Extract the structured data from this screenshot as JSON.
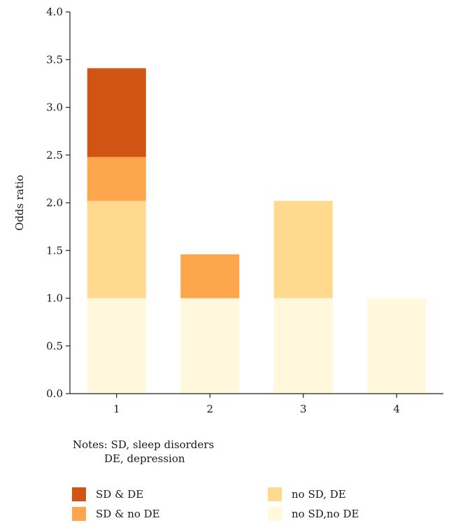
{
  "chart_data": {
    "type": "bar",
    "stacked": true,
    "categories": [
      "1",
      "2",
      "3",
      "4"
    ],
    "series": [
      {
        "name": "no SD,no DE",
        "color": "#fff8dc",
        "values": [
          1.0,
          1.0,
          1.0,
          1.0
        ]
      },
      {
        "name": "no SD, DE",
        "color": "#fed98e",
        "values": [
          1.02,
          0.0,
          1.02,
          0.0
        ]
      },
      {
        "name": "SD & no DE",
        "color": "#fea64b",
        "values": [
          0.46,
          0.46,
          0.0,
          0.0
        ]
      },
      {
        "name": "SD & DE",
        "color": "#d15414",
        "values": [
          0.93,
          0.0,
          0.0,
          0.0
        ]
      }
    ],
    "ylabel": "Odds ratio",
    "xlabel": "",
    "ylim": [
      0,
      4.0
    ],
    "yticks": [
      "0.0",
      "0.5",
      "1.0",
      "1.5",
      "2.0",
      "2.5",
      "3.0",
      "3.5",
      "4.0"
    ],
    "grid": false,
    "legend_position": "bottom"
  },
  "notes": {
    "line1": "Notes: SD, sleep disorders",
    "line2": "DE, depression"
  },
  "legend": [
    {
      "label": "SD & DE",
      "color": "#d15414"
    },
    {
      "label": "SD & no DE",
      "color": "#fea64b"
    },
    {
      "label": "no SD, DE",
      "color": "#fed98e"
    },
    {
      "label": "no SD,no DE",
      "color": "#fff8dc"
    }
  ]
}
